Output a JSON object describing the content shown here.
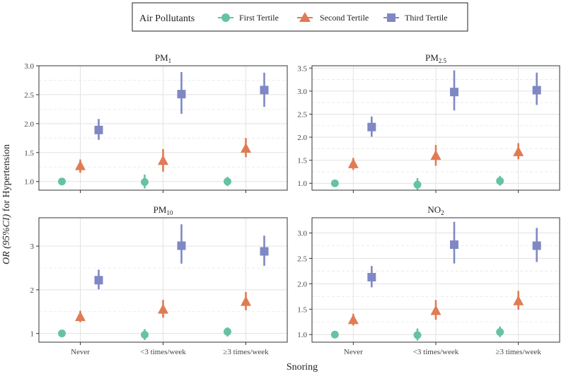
{
  "legend": {
    "title": "Air Pollutants",
    "items": [
      {
        "label": "First Tertile",
        "color": "#66c2a5",
        "shape": "circle"
      },
      {
        "label": "Second Tertile",
        "color": "#e07b54",
        "shape": "triangle"
      },
      {
        "label": "Third Tertile",
        "color": "#7f88c4",
        "shape": "square"
      }
    ]
  },
  "ylabel": {
    "italic": "OR (95%CI)",
    "rest": " for Hypertension"
  },
  "xlabel": "Snoring",
  "chart_data": [
    {
      "type": "scatter",
      "title": {
        "base": "PM",
        "sub": "1"
      },
      "categories": [
        "Never",
        "<3 times/week",
        "≥3 times/week"
      ],
      "ylim": [
        0.85,
        3.0
      ],
      "yticks": [
        1.0,
        1.5,
        2.0,
        2.5,
        3.0
      ],
      "tick_format": "1dp",
      "series": [
        {
          "name": "First Tertile",
          "values": [
            1.0,
            0.99,
            1.0
          ],
          "low": [
            1.0,
            0.88,
            0.92
          ],
          "high": [
            1.0,
            1.12,
            1.08
          ]
        },
        {
          "name": "Second Tertile",
          "values": [
            1.27,
            1.36,
            1.57
          ],
          "low": [
            1.15,
            1.17,
            1.42
          ],
          "high": [
            1.38,
            1.56,
            1.75
          ]
        },
        {
          "name": "Third Tertile",
          "values": [
            1.89,
            2.51,
            2.58
          ],
          "low": [
            1.72,
            2.17,
            2.29
          ],
          "high": [
            2.08,
            2.89,
            2.88
          ]
        }
      ]
    },
    {
      "type": "scatter",
      "title": {
        "base": "PM",
        "sub": "2.5"
      },
      "categories": [
        "Never",
        "<3 times/week",
        "≥3 times/week"
      ],
      "ylim": [
        0.85,
        3.55
      ],
      "yticks": [
        1.0,
        1.5,
        2.0,
        2.5,
        3.0,
        3.5
      ],
      "tick_format": "1dp",
      "series": [
        {
          "name": "First Tertile",
          "values": [
            1.0,
            0.97,
            1.05
          ],
          "low": [
            1.0,
            0.86,
            0.95
          ],
          "high": [
            1.0,
            1.11,
            1.16
          ]
        },
        {
          "name": "Second Tertile",
          "values": [
            1.42,
            1.6,
            1.68
          ],
          "low": [
            1.29,
            1.38,
            1.52
          ],
          "high": [
            1.55,
            1.83,
            1.87
          ]
        },
        {
          "name": "Third Tertile",
          "values": [
            2.22,
            2.98,
            3.02
          ],
          "low": [
            2.01,
            2.58,
            2.7
          ],
          "high": [
            2.45,
            3.45,
            3.4
          ]
        }
      ]
    },
    {
      "type": "scatter",
      "title": {
        "base": "PM",
        "sub": "10"
      },
      "categories": [
        "Never",
        "<3 times/week",
        "≥3 times/week"
      ],
      "ylim": [
        0.8,
        3.65
      ],
      "yticks": [
        1,
        2,
        3
      ],
      "tick_format": "int",
      "series": [
        {
          "name": "First Tertile",
          "values": [
            1.0,
            0.97,
            1.04
          ],
          "low": [
            1.0,
            0.85,
            0.93
          ],
          "high": [
            1.0,
            1.1,
            1.14
          ]
        },
        {
          "name": "Second Tertile",
          "values": [
            1.38,
            1.55,
            1.73
          ],
          "low": [
            1.26,
            1.36,
            1.53
          ],
          "high": [
            1.52,
            1.77,
            1.95
          ]
        },
        {
          "name": "Third Tertile",
          "values": [
            2.22,
            3.01,
            2.88
          ],
          "low": [
            2.01,
            2.6,
            2.55
          ],
          "high": [
            2.46,
            3.5,
            3.24
          ]
        }
      ]
    },
    {
      "type": "scatter",
      "title": {
        "base": "NO",
        "sub": "2"
      },
      "categories": [
        "Never",
        "<3 times/week",
        "≥3 times/week"
      ],
      "ylim": [
        0.85,
        3.3
      ],
      "yticks": [
        1.0,
        1.5,
        2.0,
        2.5,
        3.0
      ],
      "tick_format": "1dp",
      "series": [
        {
          "name": "First Tertile",
          "values": [
            1.0,
            0.99,
            1.05
          ],
          "low": [
            1.0,
            0.88,
            0.95
          ],
          "high": [
            1.0,
            1.12,
            1.16
          ]
        },
        {
          "name": "Second Tertile",
          "values": [
            1.29,
            1.47,
            1.66
          ],
          "low": [
            1.18,
            1.29,
            1.49
          ],
          "high": [
            1.41,
            1.68,
            1.86
          ]
        },
        {
          "name": "Third Tertile",
          "values": [
            2.13,
            2.77,
            2.75
          ],
          "low": [
            1.93,
            2.4,
            2.43
          ],
          "high": [
            2.35,
            3.22,
            3.1
          ]
        }
      ]
    }
  ]
}
